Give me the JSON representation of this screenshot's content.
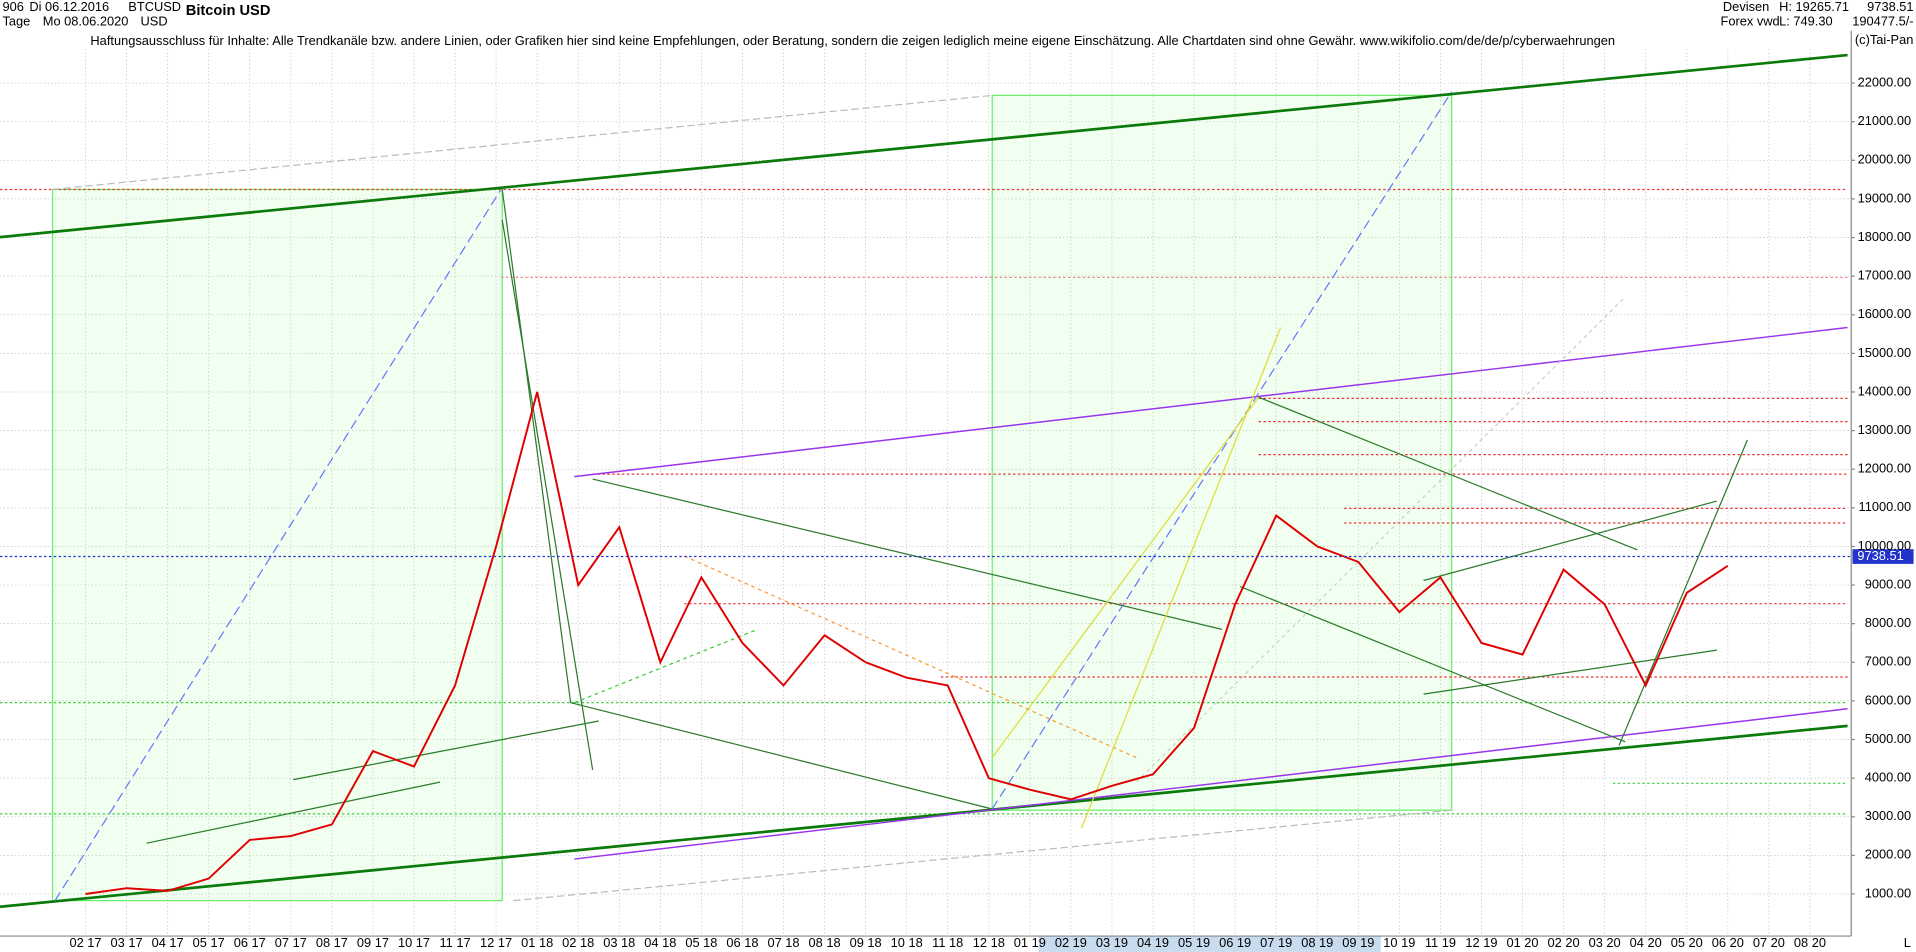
{
  "header": {
    "left_top": "906",
    "date_from": "Di 06.12.2016",
    "period": "Tage",
    "date_to": "Mo 08.06.2020",
    "symbol": "BTCUSD",
    "currency": "USD",
    "name": "Bitcoin USD",
    "market": "Devisen",
    "source": "Forex vwd",
    "high": "H: 19265.71",
    "low": "L: 749.30",
    "right_value": "9738.51",
    "right_range": "190477.5/-",
    "disclaimer": "Haftungsausschluss für Inhalte: Alle Trendkanäle bzw. andere Linien, oder Grafiken hier sind keine Empfehlungen, oder Beratung, sondern die zeigen lediglich meine eigene Einschätzung. Alle Chartdaten sind ohne Gewähr.  www.wikifolio.com/de/de/p/cyberwaehrungen",
    "copyright": "(c)Tai-Pan",
    "corner": "L"
  },
  "chart_data": {
    "type": "line",
    "categories": [
      "02 17",
      "03 17",
      "04 17",
      "05 17",
      "06 17",
      "07 17",
      "08 17",
      "09 17",
      "10 17",
      "11 17",
      "12 17",
      "01 18",
      "02 18",
      "03 18",
      "04 18",
      "05 18",
      "06 18",
      "07 18",
      "08 18",
      "09 18",
      "10 18",
      "11 18",
      "12 18",
      "01 19",
      "02 19",
      "03 19",
      "04 19",
      "05 19",
      "06 19",
      "07 19",
      "08 19",
      "09 19",
      "10 19",
      "11 19",
      "12 19",
      "01 20",
      "02 20",
      "03 20",
      "04 20",
      "05 20",
      "06 20",
      "07 20",
      "08 20"
    ],
    "series": [
      {
        "name": "BTCUSD",
        "color": "#e00000",
        "values": [
          1000,
          1150,
          1080,
          1400,
          2400,
          2500,
          2800,
          4700,
          4300,
          6400,
          10000,
          14000,
          9000,
          10500,
          7000,
          9200,
          7500,
          6400,
          7700,
          7000,
          6600,
          6400,
          4000,
          3700,
          3450,
          3800,
          4100,
          5300,
          8500,
          10800,
          10000,
          9600,
          8300,
          9200,
          7500,
          7200,
          9400,
          8500,
          6400,
          8800,
          9500,
          null,
          null
        ]
      }
    ],
    "last_price": 9738.51,
    "ylim": [
      100,
      24150
    ],
    "yticks": [
      {
        "value": 1000,
        "label": "1000.00"
      },
      {
        "value": 2000,
        "label": "2000.00"
      },
      {
        "value": 3000,
        "label": "3000.00"
      },
      {
        "value": 4000,
        "label": "4000.00"
      },
      {
        "value": 5000,
        "label": "5000.00"
      },
      {
        "value": 6000,
        "label": "6000.00"
      },
      {
        "value": 7000,
        "label": "7000.00"
      },
      {
        "value": 8000,
        "label": "8000.00"
      },
      {
        "value": 9000,
        "label": "9000.00"
      },
      {
        "value": 10000,
        "label": "10000.00"
      },
      {
        "value": 11000,
        "label": "11000.00"
      },
      {
        "value": 12000,
        "label": "12000.00"
      },
      {
        "value": 13000,
        "label": "13000.00"
      },
      {
        "value": 14000,
        "label": "14000.00"
      },
      {
        "value": 15000,
        "label": "15000.00"
      },
      {
        "value": 16000,
        "label": "16000.00"
      },
      {
        "value": 17000,
        "label": "17000.00"
      },
      {
        "value": 18000,
        "label": "18000.00"
      },
      {
        "value": 19000,
        "label": "19000.00"
      },
      {
        "value": 20000,
        "label": "20000.00"
      },
      {
        "value": 21000,
        "label": "21000.00"
      },
      {
        "value": 22000,
        "label": "22000.00"
      }
    ],
    "grid": true
  }
}
